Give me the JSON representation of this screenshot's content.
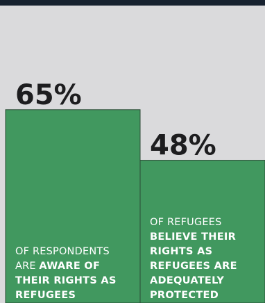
{
  "chart_data": {
    "type": "bar",
    "values": [
      65,
      48
    ],
    "value_labels": [
      "65%",
      "48%"
    ],
    "annotations": [
      {
        "text": "OF RESPONDENTS ARE",
        "emphasis": "AWARE OF THEIR RIGHTS AS REFUGEES"
      },
      {
        "text": "OF REFUGEES",
        "emphasis": "BELIEVE THEIR RIGHTS AS REFUGEES ARE ADEQUATELY PROTECTED"
      }
    ],
    "color": "#41985f",
    "ylim": [
      0,
      100
    ]
  }
}
